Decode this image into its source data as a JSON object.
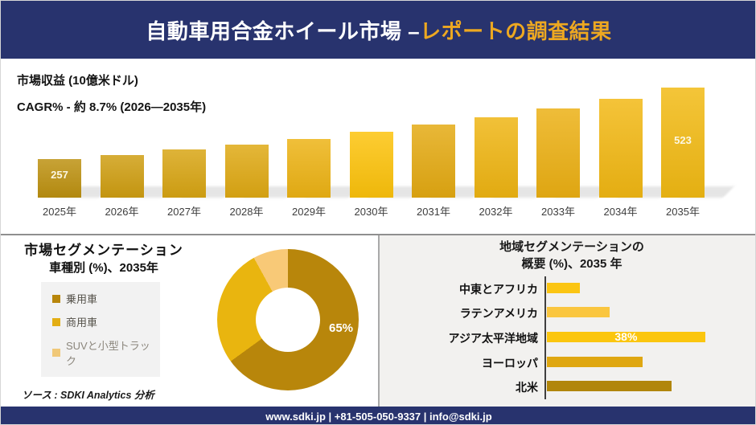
{
  "colors": {
    "navy": "#28336E",
    "title_gold": "#EDA821",
    "panel_gray": "#F2F1EF",
    "legend_box_gray": "#F2F2F2",
    "divider_gray": "#8F8F8F"
  },
  "header": {
    "title_white": "自動車用合金ホイール市場 –",
    "title_gold": "レポートの調査結果"
  },
  "revenue": {
    "metric_label": "市場収益 (10億米ドル)",
    "cagr_label": "CAGR% - 約 8.7% (2026―2035年)"
  },
  "segmentation": {
    "title_line1": "市場セグメンテーション",
    "title_line2": "車種別 (%)、2035年",
    "legend": [
      {
        "label": "乗用車",
        "color": "#B8860B",
        "text_color": "#55524A"
      },
      {
        "label": "商用車",
        "color": "#E3AE14",
        "text_color": "#55524A"
      },
      {
        "label": "SUVと小型トラック",
        "color": "#F0C878",
        "text_color": "#8B867C"
      }
    ],
    "center_label": "65%",
    "source": "ソース : SDKI Analytics 分析"
  },
  "regional": {
    "title_line1": "地域セグメンテーションの",
    "title_line2": "概要 (%)、2035 年"
  },
  "footer": {
    "text": "www.sdki.jp | +81-505-050-9337 | info@sdki.jp"
  },
  "chart_data": [
    {
      "type": "bar",
      "title": "市場収益 (10億米ドル)",
      "subtitle": "CAGR% - 約 8.7% (2026―2035年)",
      "ylabel": "10億米ドル",
      "categories": [
        "2025年",
        "2026年",
        "2027年",
        "2028年",
        "2029年",
        "2030年",
        "2031年",
        "2032年",
        "2033年",
        "2034年",
        "2035年"
      ],
      "values": [
        257,
        272,
        293,
        311,
        332,
        358,
        386,
        412,
        445,
        481,
        523
      ],
      "value_labels": [
        "257",
        null,
        null,
        null,
        null,
        null,
        null,
        null,
        null,
        null,
        "523"
      ],
      "colors": [
        "#BD9110",
        "#CF9E11",
        "#D8A513",
        "#DFA913",
        "#EDB314",
        "#FDC30B",
        "#E4AA12",
        "#EFB512",
        "#ECB013",
        "#F2B813",
        "#F2BA13"
      ],
      "ylim": [
        230,
        540
      ],
      "grid": false,
      "legend_position": "none"
    },
    {
      "type": "pie",
      "donut": true,
      "title": "市場セグメンテーション 車種別 (%)、2035年",
      "slices": [
        {
          "label": "乗用車",
          "value": 65,
          "color": "#B8860B",
          "shown_label": "65%"
        },
        {
          "label": "商用車",
          "value": 27,
          "color": "#E9B50F",
          "shown_label": null
        },
        {
          "label": "SUVと小型トラック",
          "value": 8,
          "color": "#F8C977",
          "shown_label": null
        }
      ],
      "start_angle_deg": 0,
      "direction": "clockwise",
      "legend_position": "left"
    },
    {
      "type": "bar",
      "orientation": "horizontal",
      "title": "地域セグメンテーションの概要 (%)、2035 年",
      "categories": [
        "中東とアフリカ",
        "ラテンアメリカ",
        "アジア太平洋地域",
        "ヨーロッパ",
        "北米"
      ],
      "values": [
        8,
        15,
        38,
        23,
        30
      ],
      "value_labels": [
        null,
        null,
        "38%",
        null,
        null
      ],
      "colors": [
        "#FBC513",
        "#FAC63F",
        "#FBC60F",
        "#DFA711",
        "#B1860B"
      ],
      "xlim": [
        0,
        45
      ],
      "grid": false,
      "legend_position": "none"
    }
  ]
}
